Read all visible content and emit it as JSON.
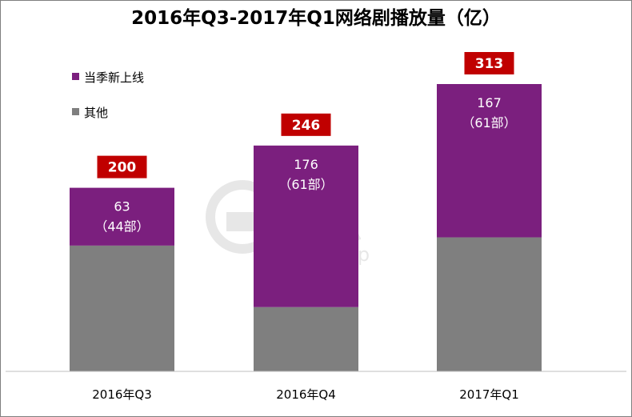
{
  "chart_data": {
    "type": "bar",
    "stacked": true,
    "title": "2016年Q3-2017年Q1网络剧播放量（亿）",
    "categories": [
      "2016年Q3",
      "2016年Q4",
      "2017年Q1"
    ],
    "series": [
      {
        "name": "当季新上线",
        "color": "#7b1f7e",
        "values": [
          63,
          176,
          167
        ],
        "labels": [
          "63",
          "176",
          "167"
        ],
        "sublabels": [
          "（44部）",
          "（61部）",
          "（61部）"
        ]
      },
      {
        "name": "其他",
        "color": "#7f7f7f",
        "values": [
          137,
          70,
          146
        ]
      }
    ],
    "totals": [
      200,
      246,
      313
    ],
    "total_label_color": "#c00000",
    "ylim": [
      0,
      313
    ],
    "watermark": {
      "text_cn": "艺恩",
      "text_en": "entgroup"
    },
    "legend": "top-left"
  }
}
